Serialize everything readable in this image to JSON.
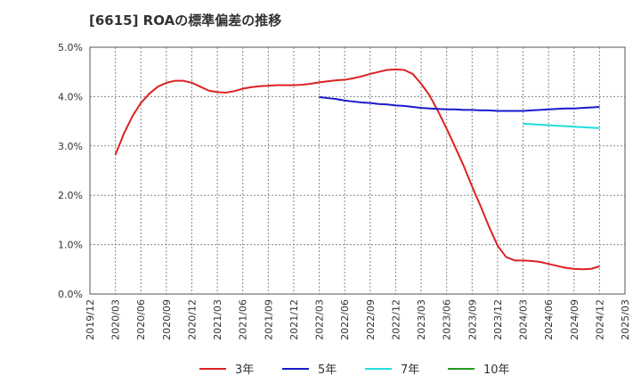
{
  "chart_data": {
    "type": "line",
    "title": "[6615]  ROAの標準偏差の推移",
    "xlabel": "",
    "ylabel": "",
    "ylim": [
      0,
      5
    ],
    "y_ticks": [
      0,
      1,
      2,
      3,
      4,
      5
    ],
    "y_tick_labels": [
      "0.0%",
      "1.0%",
      "2.0%",
      "3.0%",
      "4.0%",
      "5.0%"
    ],
    "x_tick_labels": [
      "2019/12",
      "2020/03",
      "2020/06",
      "2020/09",
      "2020/12",
      "2021/03",
      "2021/06",
      "2021/09",
      "2021/12",
      "2022/03",
      "2022/06",
      "2022/09",
      "2022/12",
      "2023/03",
      "2023/06",
      "2023/09",
      "2023/12",
      "2024/03",
      "2024/06",
      "2024/09",
      "2024/12",
      "2025/03"
    ],
    "grid": true,
    "legend_position": "bottom",
    "series": [
      {
        "name": "3年",
        "color": "#dd2222",
        "points": [
          [
            "2020/03",
            2.82
          ],
          [
            "2020/04",
            3.25
          ],
          [
            "2020/05",
            3.6
          ],
          [
            "2020/06",
            3.87
          ],
          [
            "2020/07",
            4.06
          ],
          [
            "2020/08",
            4.2
          ],
          [
            "2020/09",
            4.28
          ],
          [
            "2020/10",
            4.32
          ],
          [
            "2020/11",
            4.32
          ],
          [
            "2020/12",
            4.28
          ],
          [
            "2021/01",
            4.2
          ],
          [
            "2021/02",
            4.12
          ],
          [
            "2021/03",
            4.09
          ],
          [
            "2021/04",
            4.08
          ],
          [
            "2021/05",
            4.11
          ],
          [
            "2021/06",
            4.16
          ],
          [
            "2021/07",
            4.19
          ],
          [
            "2021/08",
            4.21
          ],
          [
            "2021/09",
            4.22
          ],
          [
            "2021/10",
            4.23
          ],
          [
            "2021/11",
            4.23
          ],
          [
            "2021/12",
            4.23
          ],
          [
            "2022/01",
            4.24
          ],
          [
            "2022/02",
            4.26
          ],
          [
            "2022/03",
            4.29
          ],
          [
            "2022/04",
            4.31
          ],
          [
            "2022/05",
            4.33
          ],
          [
            "2022/06",
            4.34
          ],
          [
            "2022/07",
            4.37
          ],
          [
            "2022/08",
            4.41
          ],
          [
            "2022/09",
            4.46
          ],
          [
            "2022/10",
            4.5
          ],
          [
            "2022/11",
            4.54
          ],
          [
            "2022/12",
            4.55
          ],
          [
            "2023/01",
            4.54
          ],
          [
            "2023/02",
            4.46
          ],
          [
            "2023/03",
            4.26
          ],
          [
            "2023/04",
            4.02
          ],
          [
            "2023/05",
            3.7
          ],
          [
            "2023/06",
            3.35
          ],
          [
            "2023/07",
            2.98
          ],
          [
            "2023/08",
            2.6
          ],
          [
            "2023/09",
            2.18
          ],
          [
            "2023/10",
            1.78
          ],
          [
            "2023/11",
            1.36
          ],
          [
            "2023/12",
            0.98
          ],
          [
            "2024/01",
            0.75
          ],
          [
            "2024/02",
            0.68
          ],
          [
            "2024/03",
            0.68
          ],
          [
            "2024/04",
            0.67
          ],
          [
            "2024/05",
            0.65
          ],
          [
            "2024/06",
            0.61
          ],
          [
            "2024/07",
            0.57
          ],
          [
            "2024/08",
            0.53
          ],
          [
            "2024/09",
            0.51
          ],
          [
            "2024/10",
            0.5
          ],
          [
            "2024/11",
            0.51
          ],
          [
            "2024/12",
            0.56
          ]
        ]
      },
      {
        "name": "5年",
        "color": "#1a1acc",
        "points": [
          [
            "2022/03",
            3.99
          ],
          [
            "2022/04",
            3.97
          ],
          [
            "2022/05",
            3.95
          ],
          [
            "2022/06",
            3.92
          ],
          [
            "2022/07",
            3.9
          ],
          [
            "2022/08",
            3.88
          ],
          [
            "2022/09",
            3.87
          ],
          [
            "2022/10",
            3.85
          ],
          [
            "2022/11",
            3.84
          ],
          [
            "2022/12",
            3.82
          ],
          [
            "2023/01",
            3.81
          ],
          [
            "2023/02",
            3.79
          ],
          [
            "2023/03",
            3.77
          ],
          [
            "2023/04",
            3.76
          ],
          [
            "2023/05",
            3.75
          ],
          [
            "2023/06",
            3.74
          ],
          [
            "2023/07",
            3.74
          ],
          [
            "2023/08",
            3.73
          ],
          [
            "2023/09",
            3.73
          ],
          [
            "2023/10",
            3.72
          ],
          [
            "2023/11",
            3.72
          ],
          [
            "2023/12",
            3.71
          ],
          [
            "2024/01",
            3.71
          ],
          [
            "2024/02",
            3.71
          ],
          [
            "2024/03",
            3.71
          ],
          [
            "2024/04",
            3.72
          ],
          [
            "2024/05",
            3.73
          ],
          [
            "2024/06",
            3.74
          ],
          [
            "2024/07",
            3.75
          ],
          [
            "2024/08",
            3.76
          ],
          [
            "2024/09",
            3.76
          ],
          [
            "2024/10",
            3.77
          ],
          [
            "2024/11",
            3.78
          ],
          [
            "2024/12",
            3.79
          ]
        ]
      },
      {
        "name": "7年",
        "color": "#22dddd",
        "points": [
          [
            "2024/03",
            3.45
          ],
          [
            "2024/04",
            3.44
          ],
          [
            "2024/05",
            3.43
          ],
          [
            "2024/06",
            3.42
          ],
          [
            "2024/07",
            3.41
          ],
          [
            "2024/08",
            3.4
          ],
          [
            "2024/09",
            3.39
          ],
          [
            "2024/10",
            3.38
          ],
          [
            "2024/11",
            3.37
          ],
          [
            "2024/12",
            3.36
          ]
        ]
      },
      {
        "name": "10年",
        "color": "#229922",
        "points": []
      }
    ]
  }
}
